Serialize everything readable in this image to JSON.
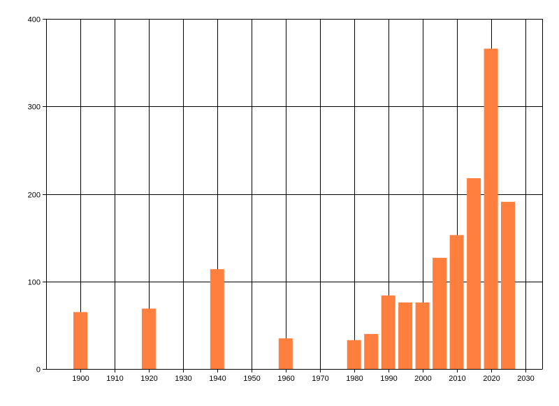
{
  "chart_data": {
    "type": "bar",
    "title": "",
    "xlabel": "",
    "ylabel": "",
    "x": [
      1900,
      1920,
      1940,
      1960,
      1980,
      1985,
      1990,
      1995,
      2000,
      2005,
      2010,
      2015,
      2020,
      2025
    ],
    "values": [
      65,
      69,
      114,
      35,
      33,
      40,
      84,
      76,
      76,
      127,
      153,
      218,
      366,
      191
    ],
    "xlim": [
      1890,
      2035
    ],
    "ylim": [
      0,
      400
    ],
    "xticks": [
      "1900",
      "1910",
      "1920",
      "1930",
      "1940",
      "1950",
      "1960",
      "1970",
      "1980",
      "1990",
      "2000",
      "2010",
      "2020",
      "2030"
    ],
    "yticks": [
      "0",
      "100",
      "200",
      "300",
      "400"
    ],
    "grid": true,
    "bar_color": "#FF7F3F",
    "grid_color": "#000000",
    "legend": "none"
  }
}
